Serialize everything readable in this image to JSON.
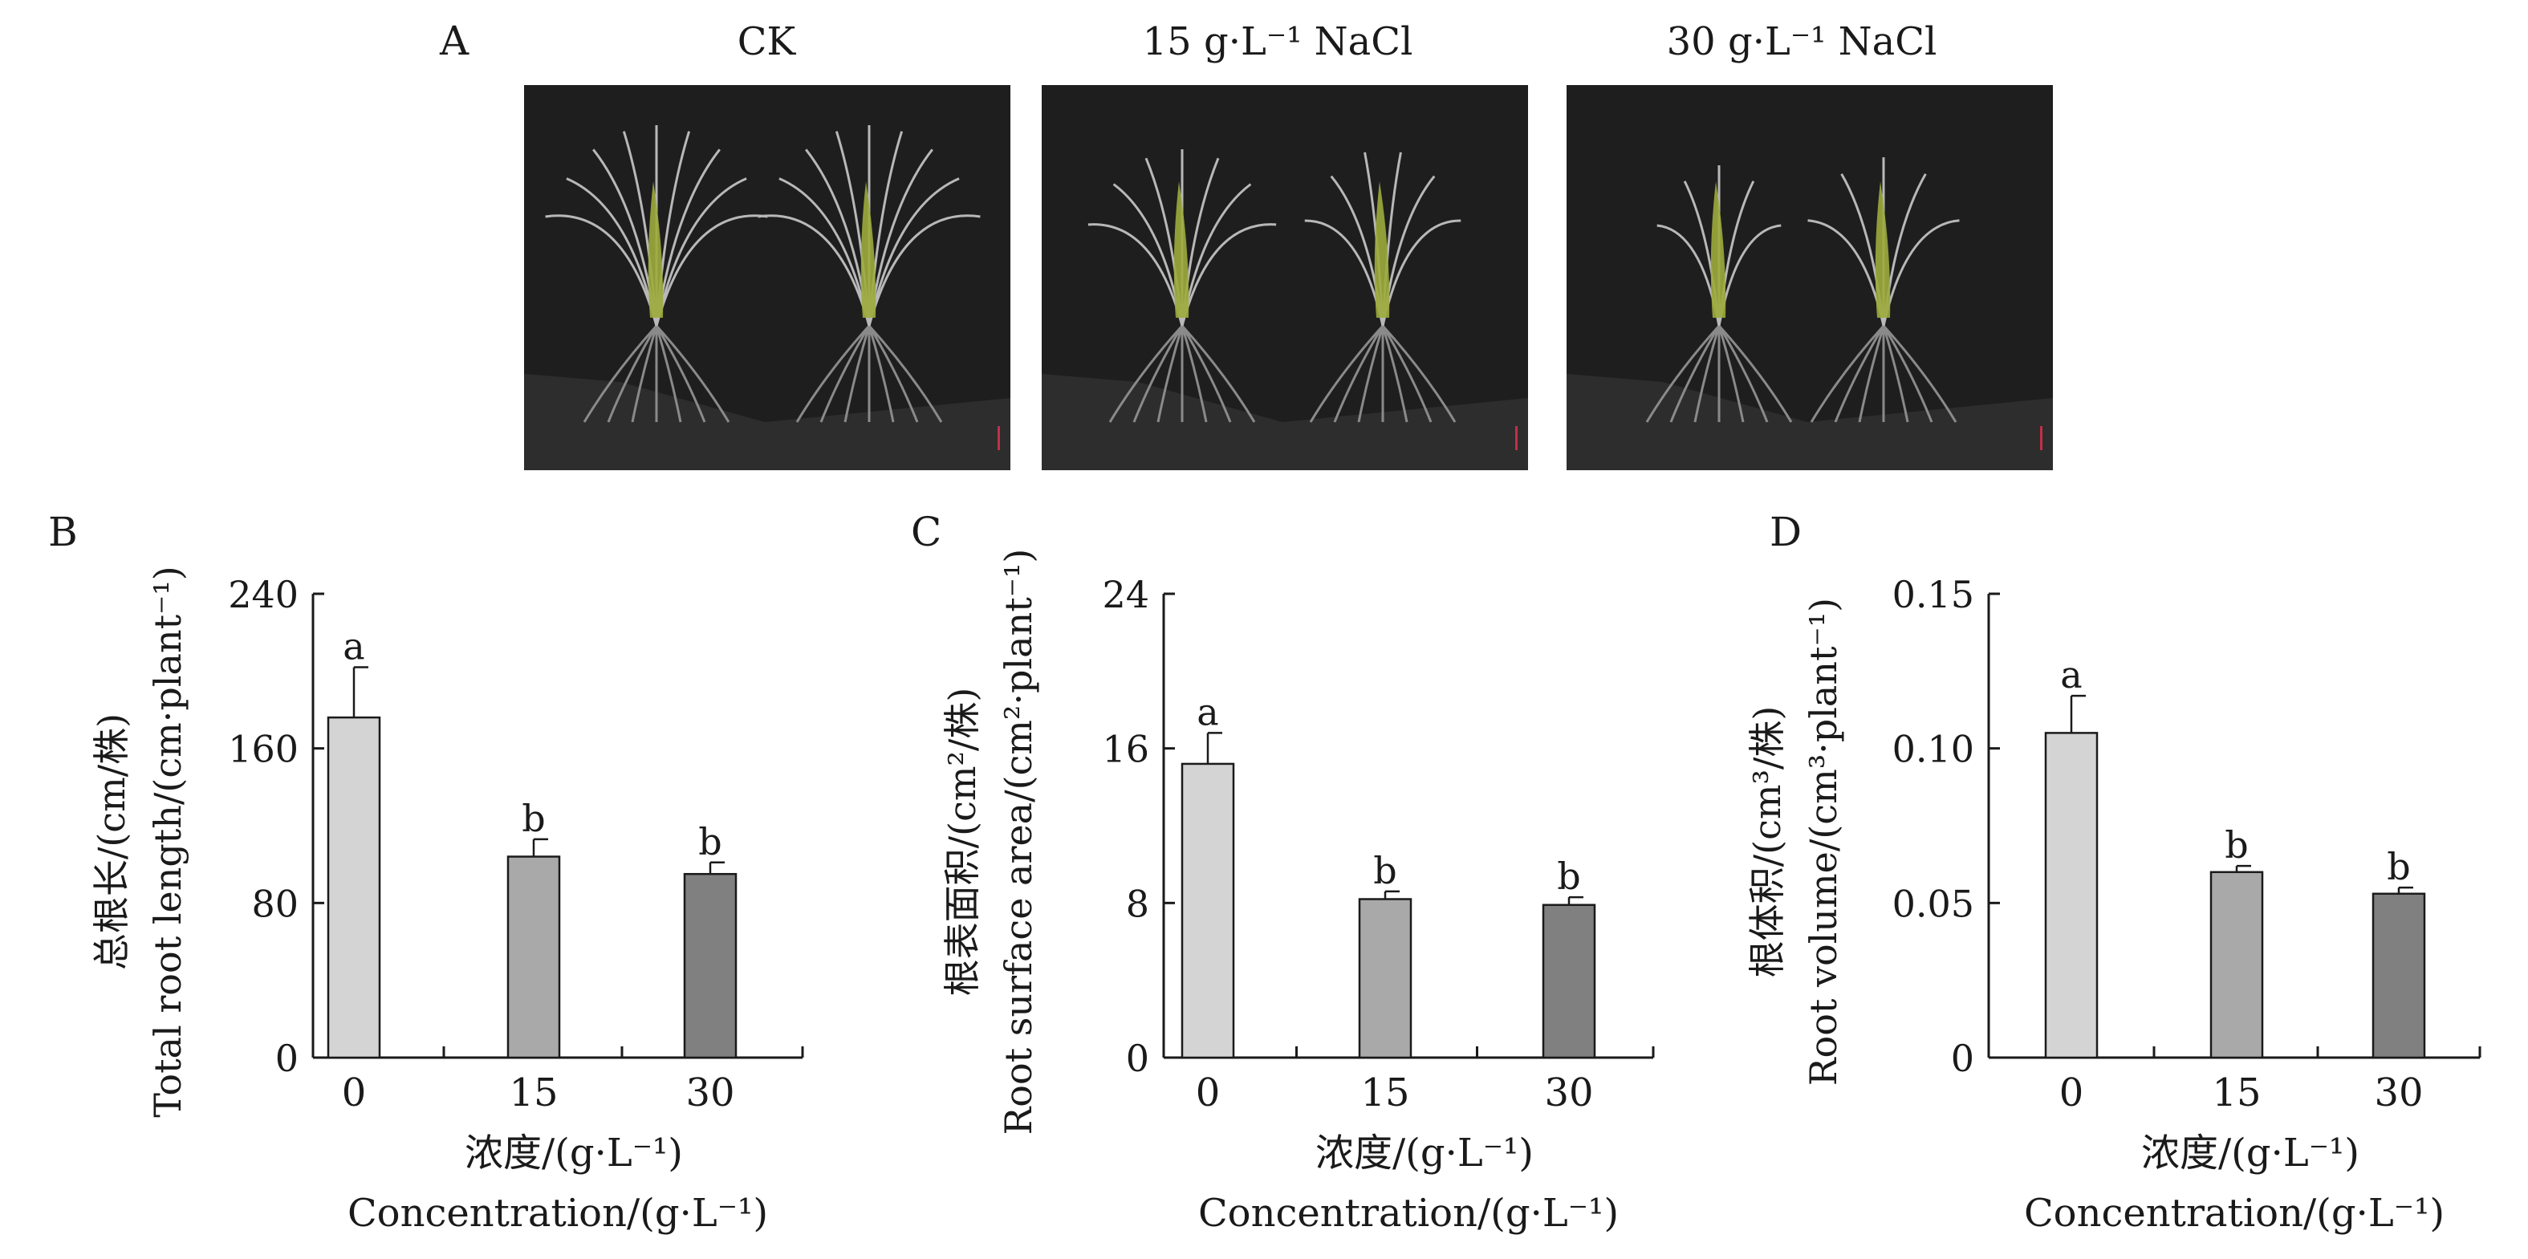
{
  "photos": {
    "label": "A",
    "panels": [
      {
        "title": "CK"
      },
      {
        "title": "15 g·L⁻¹ NaCl"
      },
      {
        "title": "30 g·L⁻¹ NaCl"
      }
    ]
  },
  "chart_data": [
    {
      "panel": "B",
      "type": "bar",
      "categories": [
        "0",
        "15",
        "30"
      ],
      "values": [
        176,
        104,
        95
      ],
      "errors": [
        26,
        9,
        6
      ],
      "letters": [
        "a",
        "b",
        "b"
      ],
      "ylabel_cn": "总根长/(cm/株)",
      "ylabel_en": "Total root length/(cm·plant⁻¹)",
      "xlabel_cn": "浓度/(g·L⁻¹)",
      "xlabel_en": "Concentration/(g·L⁻¹)",
      "ylim": [
        0,
        240
      ],
      "yticks": [
        0,
        80,
        160,
        240
      ],
      "ytick_labels": [
        "0",
        "80",
        "160",
        "240"
      ]
    },
    {
      "panel": "C",
      "type": "bar",
      "categories": [
        "0",
        "15",
        "30"
      ],
      "values": [
        15.2,
        8.2,
        7.9
      ],
      "errors": [
        1.6,
        0.4,
        0.4
      ],
      "letters": [
        "a",
        "b",
        "b"
      ],
      "ylabel_cn": "根表面积/(cm²/株)",
      "ylabel_en": "Root surface area/(cm²·plant⁻¹)",
      "xlabel_cn": "浓度/(g·L⁻¹)",
      "xlabel_en": "Concentration/(g·L⁻¹)",
      "ylim": [
        0,
        24
      ],
      "yticks": [
        0,
        8,
        16,
        24
      ],
      "ytick_labels": [
        "0",
        "8",
        "16",
        "24"
      ]
    },
    {
      "panel": "D",
      "type": "bar",
      "categories": [
        "0",
        "15",
        "30"
      ],
      "values": [
        0.105,
        0.06,
        0.053
      ],
      "errors": [
        0.012,
        0.002,
        0.002
      ],
      "letters": [
        "a",
        "b",
        "b"
      ],
      "ylabel_cn": "根体积/(cm³/株)",
      "ylabel_en": "Root volume/(cm³·plant⁻¹)",
      "xlabel_cn": "浓度/(g·L⁻¹)",
      "xlabel_en": "Concentration/(g·L⁻¹)",
      "ylim": [
        0,
        0.15
      ],
      "yticks": [
        0,
        0.05,
        0.1,
        0.15
      ],
      "ytick_labels": [
        "0",
        "0.05",
        "0.10",
        "0.15"
      ]
    }
  ],
  "style": {
    "bar_colors": [
      "#d4d4d4",
      "#a9a9a9",
      "#808080"
    ],
    "axis_color": "#1a1a1a",
    "photo_background": "#1e1e1e"
  }
}
